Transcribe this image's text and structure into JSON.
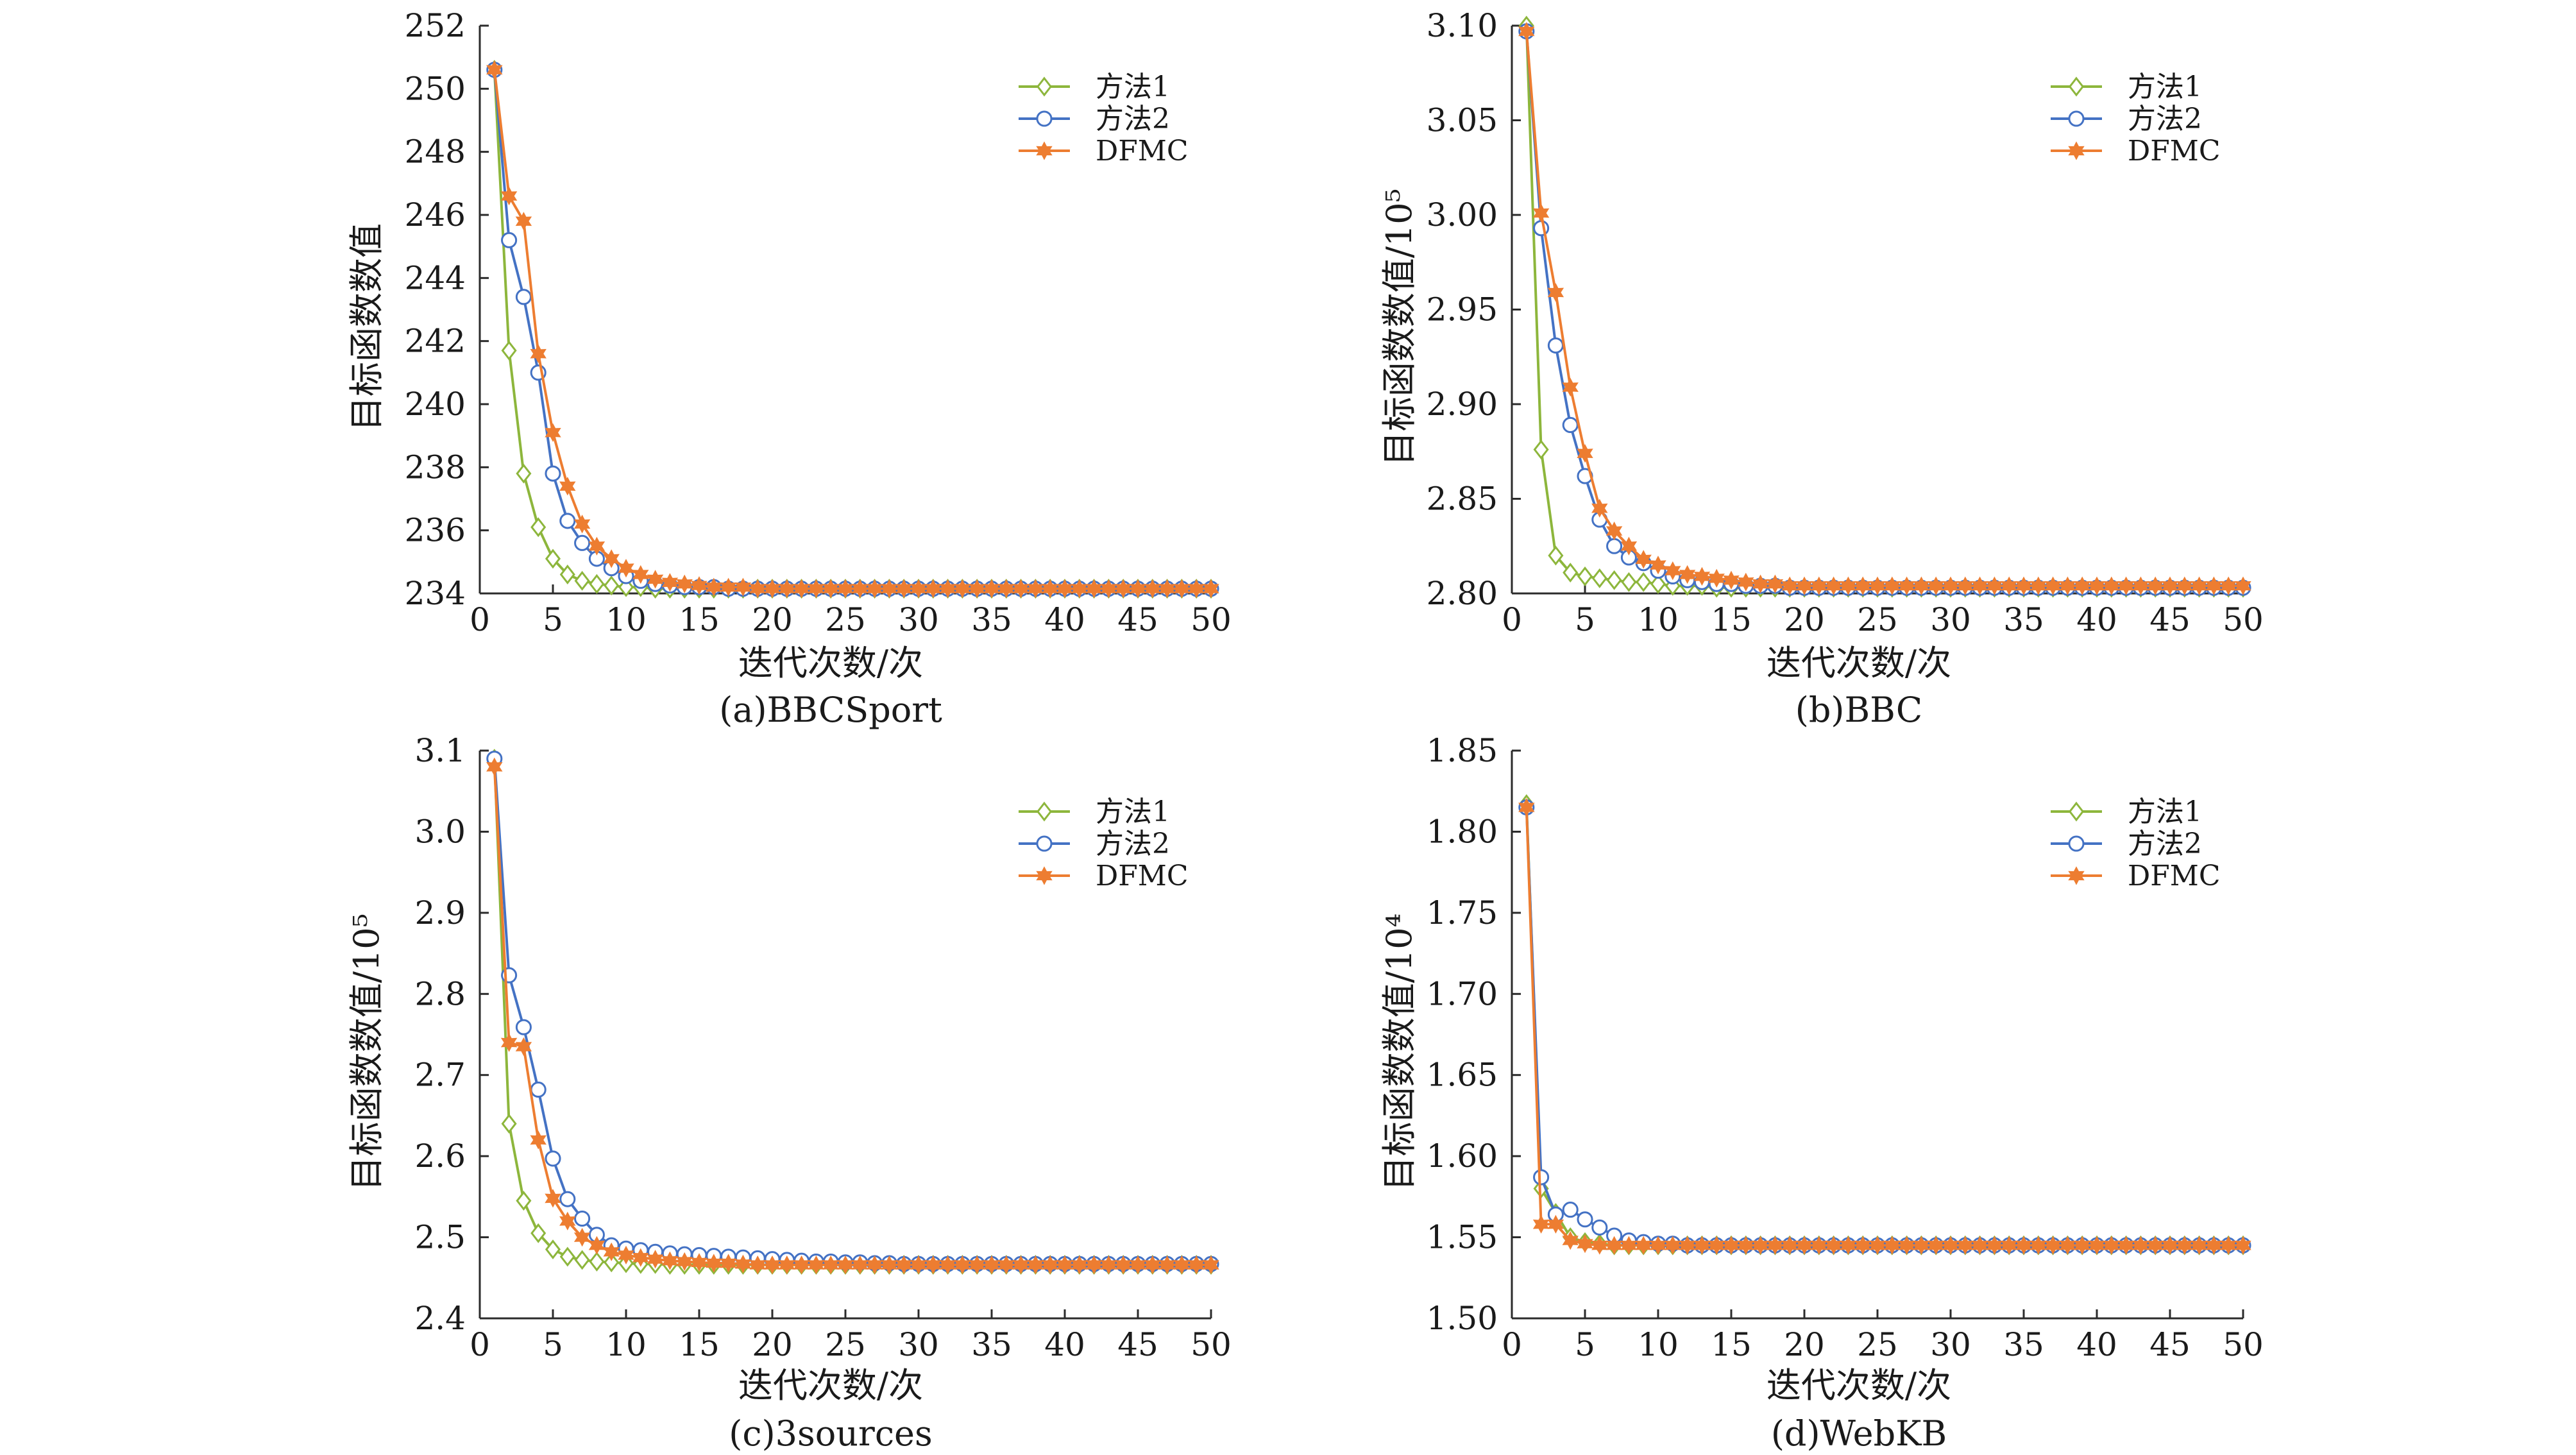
{
  "series_styles": [
    {
      "name": "方法1",
      "color": "#8DB63C",
      "marker": "diamond"
    },
    {
      "name": "方法2",
      "color": "#4472C4",
      "marker": "circle"
    },
    {
      "name": "DFMC",
      "color": "#ED7D31",
      "marker": "star"
    }
  ],
  "chart_data": [
    {
      "type": "line",
      "caption": "(a)BBCSport",
      "xlabel": "迭代次数/次",
      "ylabel": "目标函数数值",
      "xlim": [
        0,
        50
      ],
      "ylim": [
        234,
        252
      ],
      "xticks": [
        0,
        5,
        10,
        15,
        20,
        25,
        30,
        35,
        40,
        45,
        50
      ],
      "yticks": [
        234,
        236,
        238,
        240,
        242,
        244,
        246,
        248,
        250,
        252
      ],
      "ytick_labels": [
        "234",
        "236",
        "238",
        "240",
        "242",
        "244",
        "246",
        "248",
        "250",
        "252"
      ],
      "legend": "top-right",
      "grid": false,
      "series": [
        {
          "name": "方法1",
          "head": [
            250.6,
            241.7,
            237.8,
            236.1,
            235.1,
            234.6,
            234.4,
            234.3,
            234.25,
            234.2,
            234.2,
            234.15,
            234.15,
            234.15,
            234.15
          ],
          "tail": 234.15
        },
        {
          "name": "方法2",
          "head": [
            250.6,
            245.2,
            243.4,
            241.0,
            237.8,
            236.3,
            235.6,
            235.1,
            234.8,
            234.55,
            234.4,
            234.3,
            234.25,
            234.2,
            234.2,
            234.2,
            234.15,
            234.15
          ],
          "tail": 234.15
        },
        {
          "name": "DFMC",
          "head": [
            250.6,
            246.6,
            245.8,
            241.6,
            239.1,
            237.4,
            236.2,
            235.5,
            235.1,
            234.8,
            234.6,
            234.45,
            234.35,
            234.3,
            234.25,
            234.2,
            234.2,
            234.2
          ],
          "tail": 234.15
        }
      ]
    },
    {
      "type": "line",
      "caption": "(b)BBC",
      "xlabel": "迭代次数/次",
      "ylabel": "目标函数数值/10⁵",
      "xlim": [
        0,
        50
      ],
      "ylim": [
        2.8,
        3.1
      ],
      "xticks": [
        0,
        5,
        10,
        15,
        20,
        25,
        30,
        35,
        40,
        45,
        50
      ],
      "yticks": [
        2.8,
        2.85,
        2.9,
        2.95,
        3.0,
        3.05,
        3.1
      ],
      "ytick_labels": [
        "2.80",
        "2.85",
        "2.90",
        "2.95",
        "3.00",
        "3.05",
        "3.10"
      ],
      "legend": "top-right",
      "grid": false,
      "series": [
        {
          "name": "方法1",
          "head": [
            3.1,
            2.876,
            2.82,
            2.811,
            2.809,
            2.808,
            2.807,
            2.806,
            2.806,
            2.805,
            2.804,
            2.804,
            2.804,
            2.803,
            2.803
          ],
          "tail": 2.803
        },
        {
          "name": "方法2",
          "head": [
            3.097,
            2.993,
            2.931,
            2.889,
            2.862,
            2.839,
            2.825,
            2.819,
            2.816,
            2.812,
            2.809,
            2.807,
            2.806,
            2.805,
            2.805,
            2.804,
            2.804,
            2.804
          ],
          "tail": 2.803
        },
        {
          "name": "DFMC",
          "head": [
            3.097,
            3.001,
            2.959,
            2.909,
            2.874,
            2.845,
            2.833,
            2.825,
            2.818,
            2.815,
            2.812,
            2.81,
            2.809,
            2.808,
            2.807,
            2.806,
            2.805,
            2.805,
            2.804,
            2.804
          ],
          "tail": 2.804
        }
      ]
    },
    {
      "type": "line",
      "caption": "(c)3sources",
      "xlabel": "迭代次数/次",
      "ylabel": "目标函数数值/10⁵",
      "xlim": [
        0,
        50
      ],
      "ylim": [
        2.4,
        3.1
      ],
      "xticks": [
        0,
        5,
        10,
        15,
        20,
        25,
        30,
        35,
        40,
        45,
        50
      ],
      "yticks": [
        2.4,
        2.5,
        2.6,
        2.7,
        2.8,
        2.9,
        3.0,
        3.1
      ],
      "ytick_labels": [
        "2.4",
        "2.5",
        "2.6",
        "2.7",
        "2.8",
        "2.9",
        "3.0",
        "3.1"
      ],
      "legend": "top-right",
      "grid": false,
      "series": [
        {
          "name": "方法1",
          "head": [
            3.09,
            2.64,
            2.545,
            2.505,
            2.485,
            2.476,
            2.472,
            2.47,
            2.469,
            2.468,
            2.467,
            2.467,
            2.466,
            2.466
          ],
          "tail": 2.466
        },
        {
          "name": "方法2",
          "head": [
            3.09,
            2.823,
            2.759,
            2.682,
            2.597,
            2.547,
            2.523,
            2.503,
            2.49,
            2.486,
            2.484,
            2.482,
            2.48,
            2.479,
            2.478,
            2.477,
            2.476,
            2.475,
            2.474,
            2.473,
            2.472,
            2.471,
            2.47,
            2.47,
            2.469,
            2.469,
            2.468,
            2.468
          ],
          "tail": 2.467
        },
        {
          "name": "DFMC",
          "head": [
            3.08,
            2.74,
            2.735,
            2.62,
            2.548,
            2.52,
            2.5,
            2.49,
            2.482,
            2.478,
            2.475,
            2.473,
            2.471,
            2.47,
            2.469,
            2.468,
            2.468,
            2.467
          ],
          "tail": 2.466
        }
      ]
    },
    {
      "type": "line",
      "caption": "(d)WebKB",
      "xlabel": "迭代次数/次",
      "ylabel": "目标函数数值/10⁴",
      "xlim": [
        0,
        50
      ],
      "ylim": [
        1.5,
        1.85
      ],
      "xticks": [
        0,
        5,
        10,
        15,
        20,
        25,
        30,
        35,
        40,
        45,
        50
      ],
      "yticks": [
        1.5,
        1.55,
        1.6,
        1.65,
        1.7,
        1.75,
        1.8,
        1.85
      ],
      "ytick_labels": [
        "1.50",
        "1.55",
        "1.60",
        "1.65",
        "1.70",
        "1.75",
        "1.80",
        "1.85"
      ],
      "legend": "top-right",
      "grid": false,
      "series": [
        {
          "name": "方法1",
          "head": [
            1.817,
            1.58,
            1.565,
            1.55,
            1.547,
            1.546,
            1.545,
            1.545
          ],
          "tail": 1.545
        },
        {
          "name": "方法2",
          "head": [
            1.815,
            1.587,
            1.564,
            1.567,
            1.561,
            1.556,
            1.551,
            1.548,
            1.547,
            1.546,
            1.546,
            1.545
          ],
          "tail": 1.545
        },
        {
          "name": "DFMC",
          "head": [
            1.815,
            1.558,
            1.558,
            1.548,
            1.546,
            1.545,
            1.545
          ],
          "tail": 1.545
        }
      ]
    }
  ]
}
